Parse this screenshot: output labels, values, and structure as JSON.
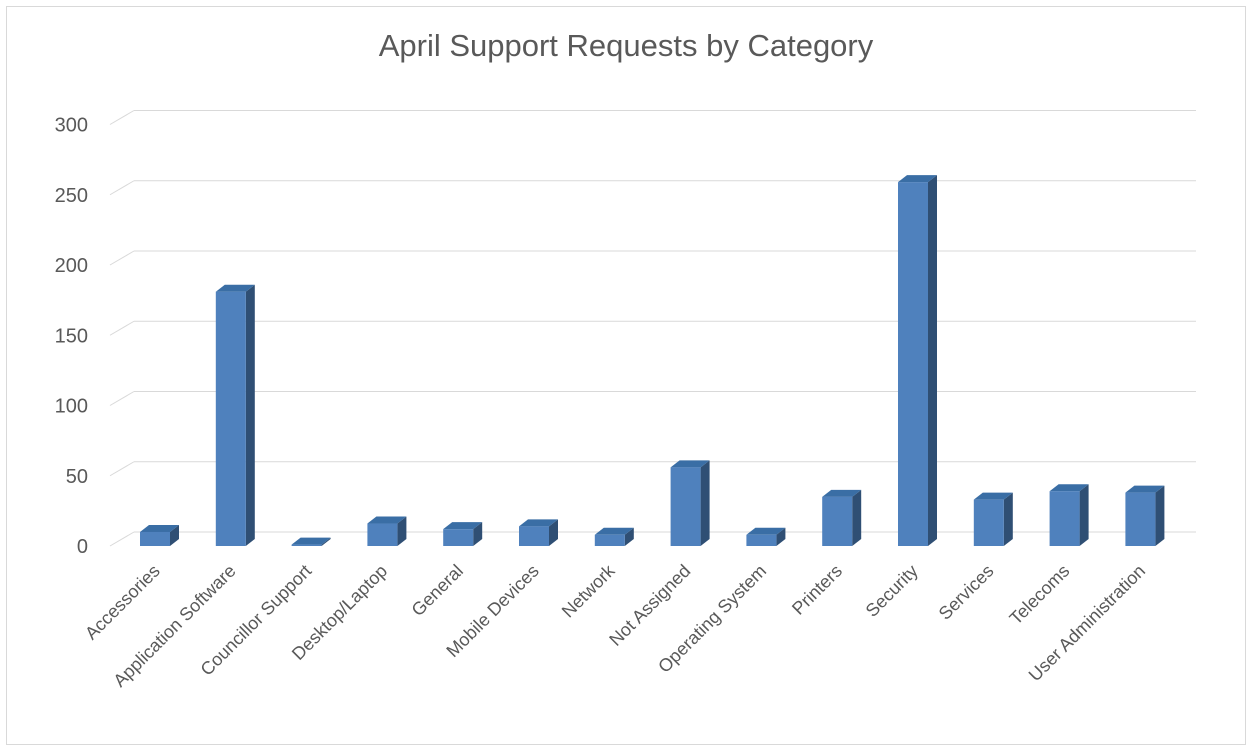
{
  "chart_data": {
    "type": "bar",
    "title": "April Support Requests by Category",
    "xlabel": "",
    "ylabel": "",
    "categories": [
      "Accessories",
      "Application Software",
      "Councillor Support",
      "Desktop/Laptop",
      "General",
      "Mobile Devices",
      "Network",
      "Not Assigned",
      "Operating System",
      "Printers",
      "Security",
      "Services",
      "Telecoms",
      "User Administration"
    ],
    "values": [
      10,
      181,
      1,
      16,
      12,
      14,
      8,
      56,
      8,
      35,
      259,
      33,
      39,
      38
    ],
    "yticks": [
      "0",
      "50",
      "100",
      "150",
      "200",
      "250",
      "300"
    ],
    "ylim": [
      0,
      300
    ],
    "grid": true,
    "legend": "none",
    "style": "3d-column",
    "bar_color": "#4f81bd",
    "bar_side_color": "#2f4f74",
    "bar_top_color": "#3a6ea5",
    "grid_color": "#d9d9d9"
  }
}
